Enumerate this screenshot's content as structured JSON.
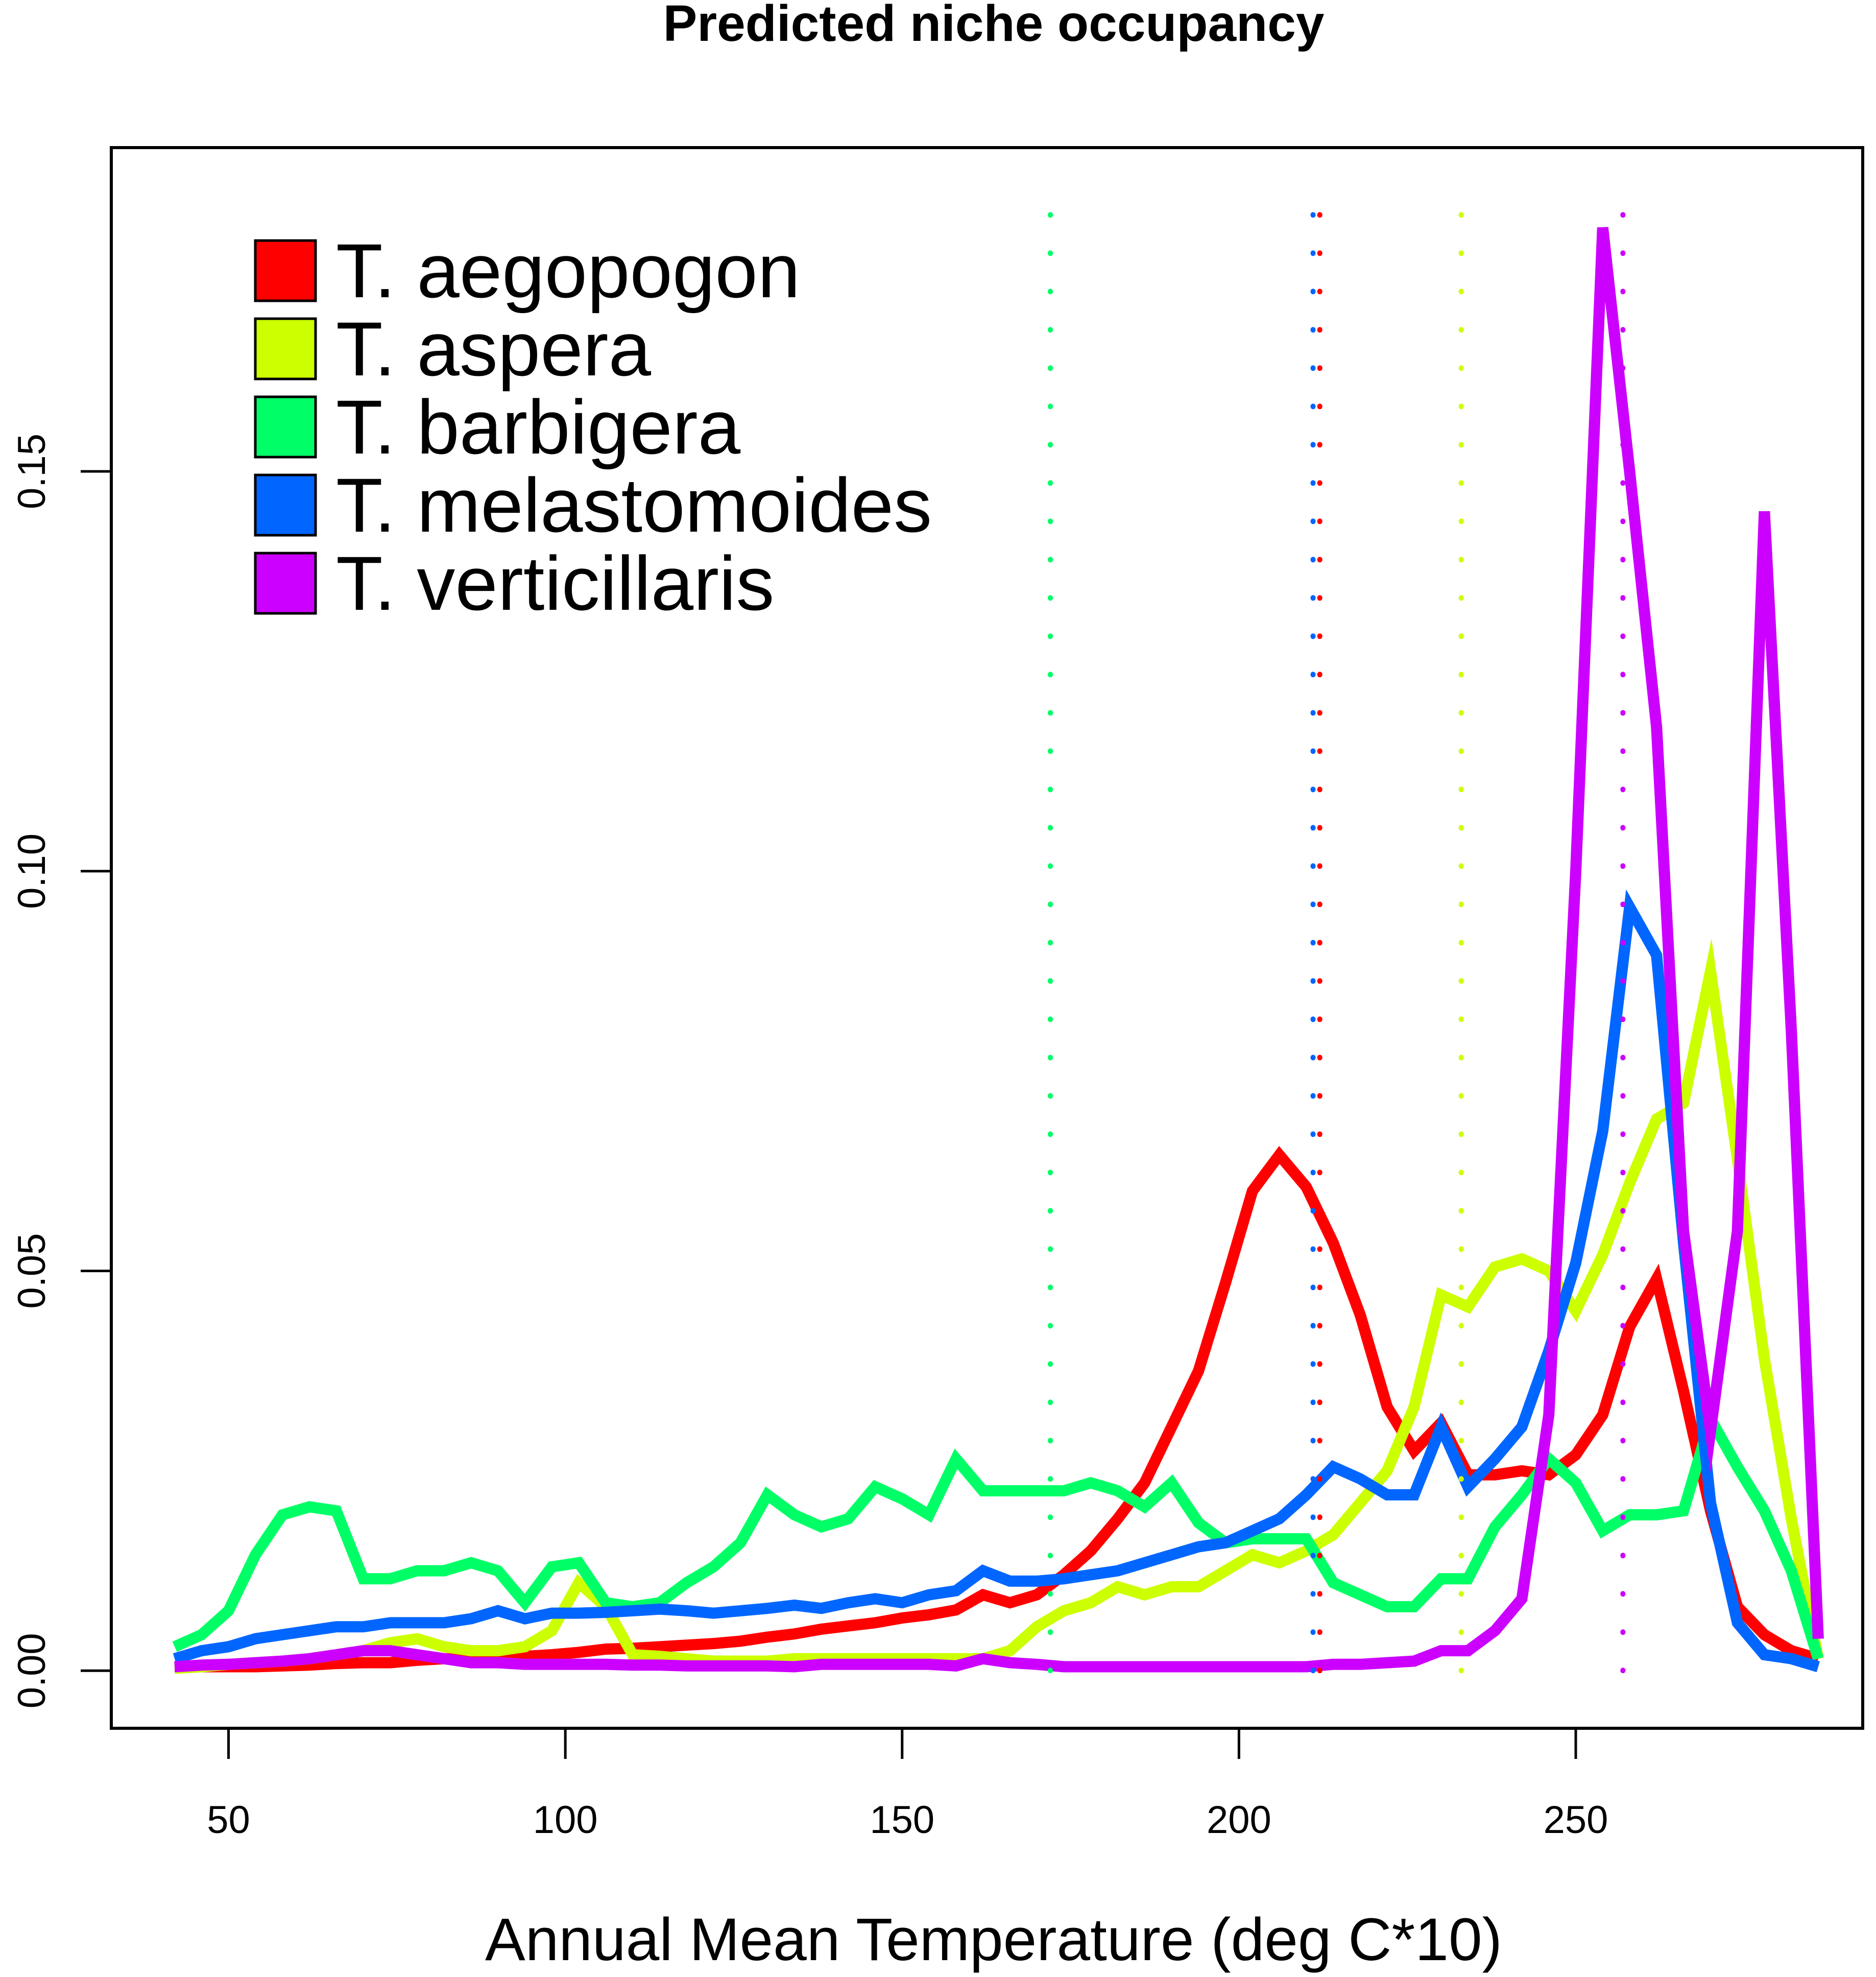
{
  "chart_data": {
    "type": "line",
    "title": "Predicted niche occupancy",
    "xlabel": "Annual Mean Temperature (deg C*10)",
    "ylabel": "",
    "xlim": [
      32.6,
      292.6
    ],
    "ylim": [
      -0.0072,
      0.1905
    ],
    "x_ticks": [
      50,
      100,
      150,
      200,
      250
    ],
    "y_ticks": [
      0.0,
      0.05,
      0.1,
      0.15
    ],
    "x_tick_labels": [
      "50",
      "100",
      "150",
      "200",
      "250"
    ],
    "y_tick_labels": [
      "0.00",
      "0.05",
      "0.10",
      "0.15"
    ],
    "grid": false,
    "legend_position": "top-left",
    "x": [
      42,
      46,
      50,
      54,
      58,
      62,
      66,
      70,
      74,
      78,
      82,
      86,
      90,
      94,
      98,
      102,
      106,
      110,
      114,
      118,
      122,
      126,
      130,
      134,
      138,
      142,
      146,
      150,
      154,
      158,
      162,
      166,
      170,
      174,
      178,
      182,
      186,
      190,
      194,
      198,
      202,
      206,
      210,
      214,
      218,
      222,
      226,
      230,
      234,
      238,
      242,
      246,
      250,
      254,
      258,
      262,
      266,
      270,
      274,
      278,
      282,
      286
    ],
    "series": [
      {
        "name": "T. aegopogon",
        "color": "#ff0000",
        "mean": 212,
        "values": [
          0.0005,
          0.0005,
          0.0005,
          0.0005,
          0.0006,
          0.0007,
          0.0009,
          0.001,
          0.001,
          0.0013,
          0.0015,
          0.0015,
          0.0016,
          0.0018,
          0.002,
          0.0023,
          0.0027,
          0.0028,
          0.003,
          0.0032,
          0.0034,
          0.0037,
          0.0042,
          0.0046,
          0.0052,
          0.0056,
          0.006,
          0.0066,
          0.007,
          0.0076,
          0.0095,
          0.0085,
          0.0095,
          0.012,
          0.015,
          0.019,
          0.0235,
          0.0305,
          0.0375,
          0.0485,
          0.06,
          0.0645,
          0.0605,
          0.0535,
          0.0445,
          0.033,
          0.0275,
          0.031,
          0.0245,
          0.0245,
          0.025,
          0.0245,
          0.027,
          0.032,
          0.043,
          0.049,
          0.035,
          0.02,
          0.008,
          0.0045,
          0.0025,
          0.0015
        ]
      },
      {
        "name": "T. aspera",
        "color": "#ccff00",
        "mean": 233,
        "values": [
          0.0003,
          0.0005,
          0.0008,
          0.001,
          0.0012,
          0.0015,
          0.002,
          0.0025,
          0.0035,
          0.004,
          0.003,
          0.0025,
          0.0025,
          0.003,
          0.005,
          0.011,
          0.008,
          0.002,
          0.0018,
          0.0015,
          0.0012,
          0.0012,
          0.0012,
          0.0015,
          0.0015,
          0.0015,
          0.0015,
          0.0015,
          0.0015,
          0.0015,
          0.0015,
          0.0025,
          0.0055,
          0.0075,
          0.0085,
          0.0105,
          0.0095,
          0.0105,
          0.0105,
          0.0125,
          0.0145,
          0.0135,
          0.015,
          0.017,
          0.021,
          0.025,
          0.033,
          0.047,
          0.0455,
          0.0505,
          0.0515,
          0.05,
          0.045,
          0.052,
          0.061,
          0.069,
          0.071,
          0.0875,
          0.064,
          0.039,
          0.019,
          0.0015
        ]
      },
      {
        "name": "T. barbigera",
        "color": "#00ff66",
        "mean": 172,
        "values": [
          0.003,
          0.0045,
          0.0075,
          0.0145,
          0.0195,
          0.0205,
          0.02,
          0.0115,
          0.0115,
          0.0125,
          0.0125,
          0.0135,
          0.0125,
          0.0085,
          0.013,
          0.0135,
          0.0085,
          0.008,
          0.0085,
          0.011,
          0.013,
          0.016,
          0.022,
          0.0195,
          0.018,
          0.019,
          0.023,
          0.0215,
          0.0195,
          0.0265,
          0.0225,
          0.0225,
          0.0225,
          0.0225,
          0.0235,
          0.0225,
          0.0205,
          0.0235,
          0.0185,
          0.016,
          0.0165,
          0.0165,
          0.0165,
          0.011,
          0.0095,
          0.008,
          0.008,
          0.0115,
          0.0115,
          0.018,
          0.022,
          0.0265,
          0.0235,
          0.0175,
          0.0195,
          0.0195,
          0.02,
          0.0315,
          0.0255,
          0.02,
          0.0125,
          0.0015
        ]
      },
      {
        "name": "T. melastomoides",
        "color": "#0066ff",
        "mean": 211,
        "values": [
          0.0015,
          0.0025,
          0.003,
          0.004,
          0.0045,
          0.005,
          0.0055,
          0.0055,
          0.006,
          0.006,
          0.006,
          0.0065,
          0.0075,
          0.0065,
          0.0072,
          0.0072,
          0.0073,
          0.0075,
          0.0077,
          0.0075,
          0.0072,
          0.0075,
          0.0078,
          0.0082,
          0.0078,
          0.0085,
          0.009,
          0.0085,
          0.0095,
          0.01,
          0.0125,
          0.0112,
          0.0112,
          0.0115,
          0.012,
          0.0125,
          0.0135,
          0.0145,
          0.0155,
          0.016,
          0.0175,
          0.019,
          0.022,
          0.0255,
          0.024,
          0.022,
          0.022,
          0.0305,
          0.023,
          0.0265,
          0.0305,
          0.04,
          0.051,
          0.0675,
          0.0955,
          0.0895,
          0.0535,
          0.021,
          0.006,
          0.002,
          0.0015,
          0.0005
        ]
      },
      {
        "name": "T. verticillaris",
        "color": "#cc00ff",
        "mean": 257,
        "values": [
          0.0005,
          0.0007,
          0.0008,
          0.001,
          0.0012,
          0.0015,
          0.002,
          0.0025,
          0.0025,
          0.002,
          0.0015,
          0.001,
          0.001,
          0.0008,
          0.0008,
          0.0008,
          0.0008,
          0.0007,
          0.0007,
          0.0006,
          0.0006,
          0.0006,
          0.0006,
          0.0005,
          0.0008,
          0.0008,
          0.0008,
          0.0008,
          0.0008,
          0.0006,
          0.0015,
          0.001,
          0.0008,
          0.0005,
          0.0005,
          0.0005,
          0.0005,
          0.0005,
          0.0005,
          0.0005,
          0.0005,
          0.0005,
          0.0005,
          0.0008,
          0.0008,
          0.001,
          0.0012,
          0.0025,
          0.0025,
          0.005,
          0.009,
          0.032,
          0.1,
          0.1805,
          0.15,
          0.118,
          0.055,
          0.03,
          0.055,
          0.145,
          0.08,
          0.004
        ]
      }
    ]
  }
}
